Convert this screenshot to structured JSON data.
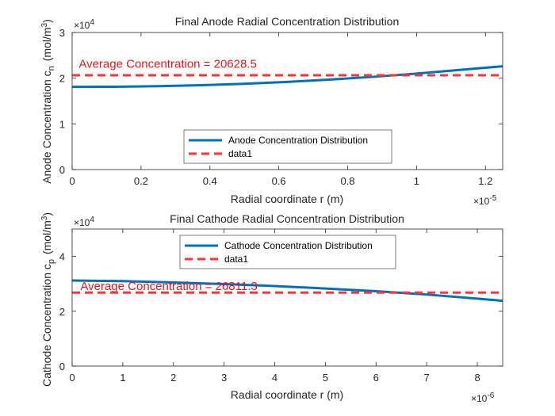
{
  "chart_data": [
    {
      "type": "line",
      "title": "Final Anode Radial Concentration Distribution",
      "xlabel": "Radial coordinate r (m)",
      "ylabel": "Anode Concentration c",
      "ylabel_sub": "n",
      "ylabel_unit": "(mol/m",
      "ylabel_unit_sup": "3",
      "ylabel_unit_close": ")",
      "x_exponent_base": "×10",
      "x_exponent": "-5",
      "y_exponent_base": "×10",
      "y_exponent": "4",
      "xlim": [
        0,
        1.25
      ],
      "ylim": [
        0,
        3
      ],
      "xticks": [
        0,
        0.2,
        0.4,
        0.6,
        0.8,
        1,
        1.2
      ],
      "xtick_labels": [
        "0",
        "0.2",
        "0.4",
        "0.6",
        "0.8",
        "1",
        "1.2"
      ],
      "yticks": [
        0,
        1,
        2,
        3
      ],
      "ytick_labels": [
        "0",
        "1",
        "2",
        "3"
      ],
      "annotation": "Average Concentration = 20628.5",
      "annotation_at": [
        0.01,
        2.23
      ],
      "legend": {
        "placement": "lower-center",
        "entries": [
          "Anode Concentration Distribution",
          "data1"
        ]
      },
      "series": [
        {
          "name": "Anode Concentration Distribution",
          "style": "solid",
          "color": "#0072BD",
          "x": [
            0,
            0.125,
            0.25,
            0.375,
            0.5,
            0.625,
            0.75,
            0.875,
            1.0,
            1.125,
            1.25
          ],
          "y": [
            1.81,
            1.812,
            1.825,
            1.847,
            1.878,
            1.919,
            1.97,
            2.03,
            2.1,
            2.18,
            2.26
          ]
        },
        {
          "name": "data1",
          "style": "dashed",
          "color": "#FF3333",
          "x": [
            0,
            1.25
          ],
          "y": [
            2.06285,
            2.06285
          ]
        }
      ]
    },
    {
      "type": "line",
      "title": "Final Cathode Radial Concentration Distribution",
      "xlabel": "Radial coordinate r (m)",
      "ylabel": "Cathode Concentration c",
      "ylabel_sub": "p",
      "ylabel_unit": "(mol/m",
      "ylabel_unit_sup": "3",
      "ylabel_unit_close": ")",
      "x_exponent_base": "×10",
      "x_exponent": "-6",
      "y_exponent_base": "×10",
      "y_exponent": "4",
      "xlim": [
        0,
        8.5
      ],
      "ylim": [
        0,
        5
      ],
      "xticks": [
        0,
        1,
        2,
        3,
        4,
        5,
        6,
        7,
        8
      ],
      "xtick_labels": [
        "0",
        "1",
        "2",
        "3",
        "4",
        "5",
        "6",
        "7",
        "8"
      ],
      "yticks": [
        0,
        2,
        4
      ],
      "ytick_labels": [
        "0",
        "2",
        "4"
      ],
      "annotation": "Average Concentration = 26811.3",
      "annotation_at": [
        0.1,
        2.78
      ],
      "legend": {
        "placement": "top-center",
        "entries": [
          "Cathode Concentration Distribution",
          "data1"
        ]
      },
      "series": [
        {
          "name": "Cathode Concentration Distribution",
          "style": "solid",
          "color": "#0072BD",
          "x": [
            0,
            1,
            2,
            3,
            4,
            5,
            6,
            7,
            8,
            8.5
          ],
          "y": [
            3.12,
            3.1,
            3.05,
            2.99,
            2.92,
            2.83,
            2.73,
            2.61,
            2.46,
            2.38
          ]
        },
        {
          "name": "data1",
          "style": "dashed",
          "color": "#FF3333",
          "x": [
            0,
            8.5
          ],
          "y": [
            2.68113,
            2.68113
          ]
        }
      ]
    }
  ]
}
